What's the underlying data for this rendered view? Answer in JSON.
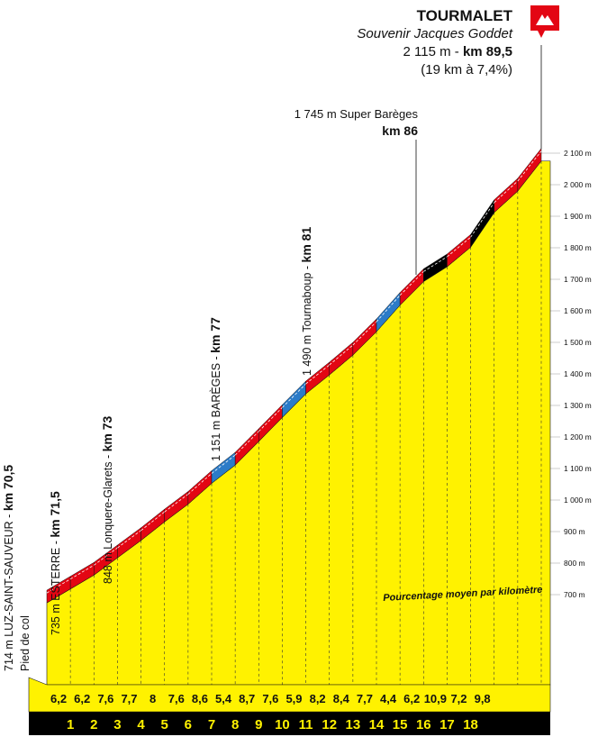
{
  "summit": {
    "name": "TOURMALET",
    "subtitle": "Souvenir Jacques Goddet",
    "altitude_text": "2 115 m - ",
    "km_text": "km 89,5",
    "gradient_text": "(19 km à 7,4%)"
  },
  "annotations": {
    "super_bareges_alt": "1 745 m Super Barèges",
    "super_bareges_km": "km 86",
    "tournaboup_alt": "1 490 m Tournaboup - ",
    "tournaboup_km": "km 81",
    "bareges_alt": "1 151 m BARÈGES - ",
    "bareges_km": "km 77",
    "longuere_alt": "848 m Lonquere-Glarets - ",
    "longuere_km": "km 73",
    "esterre_alt": "735 m ESTERRE - ",
    "esterre_km": "km 71,5",
    "luz_alt": "714 m LUZ-SAINT-SAUVEUR - ",
    "luz_km": "km 70,5",
    "pied_de_col": "Pied de col"
  },
  "avg_label": "Pourcentage moyen par kilomètre",
  "colors": {
    "yellow": "#FFF200",
    "red": "#E30613",
    "blue": "#2B7BC8",
    "black": "#000000",
    "grey": "#cfcfcf"
  },
  "chart_data": {
    "type": "area",
    "title": "TOURMALET",
    "xlabel": "",
    "ylabel": "",
    "ylim": [
      700,
      2100
    ],
    "y_ticks": [
      "700 m",
      "800 m",
      "900 m",
      "1 000 m",
      "1 100 m",
      "1 200 m",
      "1 300 m",
      "1 400 m",
      "1 500 m",
      "1 600 m",
      "1 700 m",
      "1 800 m",
      "1 900 m",
      "2 000 m",
      "2 100 m"
    ],
    "km_labels": [
      "1",
      "2",
      "3",
      "4",
      "5",
      "6",
      "7",
      "8",
      "9",
      "10",
      "11",
      "12",
      "13",
      "14",
      "15",
      "16",
      "17",
      "18"
    ],
    "gradients": [
      "6,2",
      "6,2",
      "7,6",
      "7,7",
      "8",
      "7,6",
      "8,6",
      "5,4",
      "8,7",
      "7,6",
      "5,9",
      "8,2",
      "8,4",
      "7,7",
      "4,4",
      "6,2",
      "10,9",
      "7,2",
      "9,8"
    ],
    "segment_colors": [
      "red",
      "red",
      "red",
      "red",
      "red",
      "red",
      "red",
      "blue",
      "red",
      "red",
      "blue",
      "red",
      "red",
      "red",
      "blue",
      "red",
      "black",
      "red",
      "black"
    ],
    "profile_altitudes": [
      714,
      758,
      802,
      857,
      912,
      971,
      1027,
      1093,
      1151,
      1226,
      1302,
      1377,
      1437,
      1500,
      1574,
      1658,
      1733,
      1780,
      1842,
      1952,
      2020,
      2115
    ]
  }
}
